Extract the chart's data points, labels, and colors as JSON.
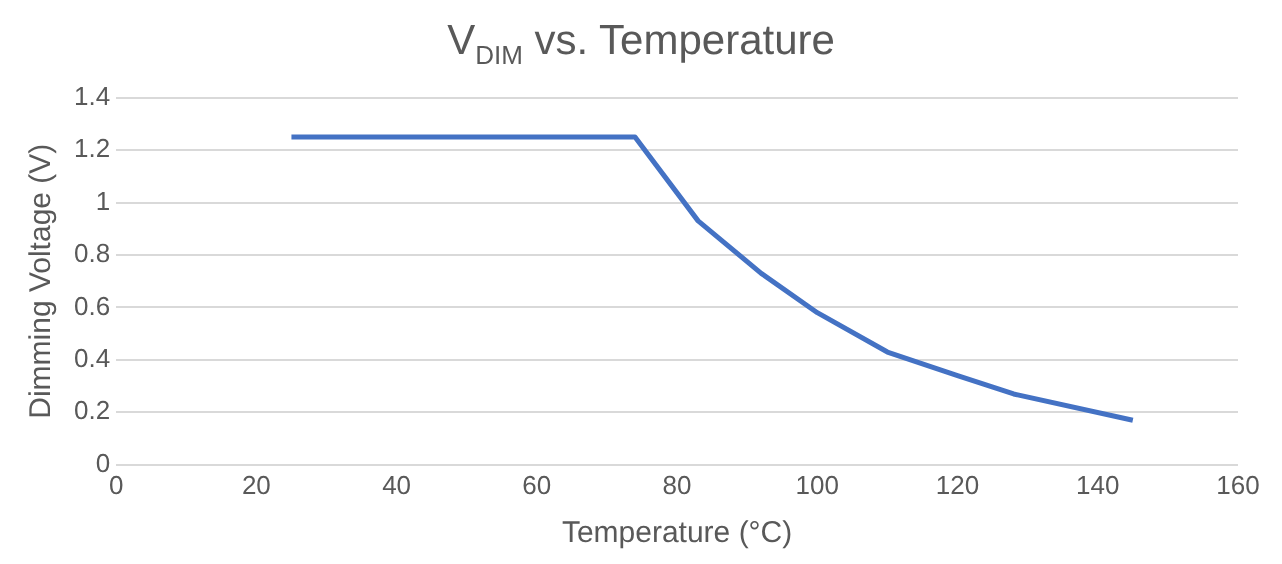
{
  "chart_data": {
    "type": "line",
    "title": "V$_{DIM}$ vs. Temperature",
    "xlabel": "Temperature (°C)",
    "ylabel": "Dimming Voltage (V)",
    "x": [
      25,
      74,
      83,
      92,
      100,
      110,
      120,
      128,
      145
    ],
    "series": [
      {
        "color": "#4472c4",
        "values": [
          1.25,
          1.25,
          0.93,
          0.73,
          0.58,
          0.43,
          0.34,
          0.27,
          0.17
        ]
      }
    ],
    "xlim": [
      0,
      160
    ],
    "xticks": [
      0,
      20,
      40,
      60,
      80,
      100,
      120,
      140,
      160
    ],
    "ylim": [
      0,
      1.4
    ],
    "yticks": [
      0,
      0.2,
      0.4,
      0.6,
      0.8,
      1,
      1.2,
      1.4
    ],
    "grid": "y",
    "marker": "none",
    "line_style": "solid"
  }
}
